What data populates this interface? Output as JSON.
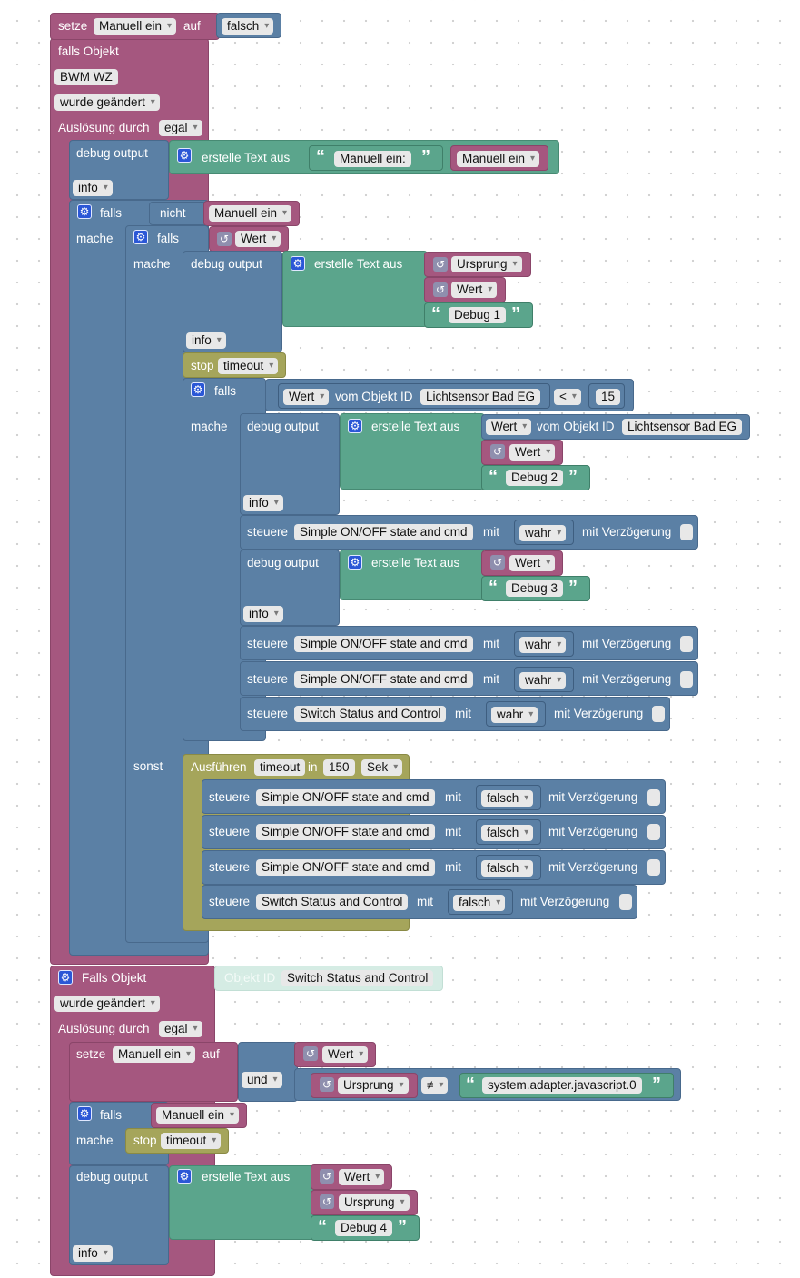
{
  "labels": {
    "setze": "setze",
    "auf": "auf",
    "falls_objekt": "falls Objekt",
    "falls_objekt_cap": "Falls Objekt",
    "wurde_geaendert": "wurde geändert",
    "ausloesung_durch": "Auslösung durch",
    "egal": "egal",
    "debug_output": "debug output",
    "erstelle_text_aus": "erstelle Text aus",
    "info": "info",
    "falls": "falls",
    "nicht": "nicht",
    "mache": "mache",
    "sonst": "sonst",
    "stop": "stop",
    "timeout": "timeout",
    "vom_objekt_id": "vom Objekt ID",
    "steuere": "steuere",
    "mit": "mit",
    "mit_verzoegerung": "mit Verzögerung",
    "ausfuehren": "Ausführen",
    "in": "in",
    "sek": "Sek",
    "objekt_id": "Objekt ID",
    "und": "und",
    "lt": "<",
    "neq": "≠"
  },
  "values": {
    "manuell_ein": "Manuell ein",
    "falsch": "falsch",
    "wahr": "wahr",
    "bwm_wz": "BWM WZ",
    "wert": "Wert",
    "ursprung": "Ursprung",
    "lichtsensor": "Lichtsensor Bad EG",
    "simple_onoff": "Simple ON/OFF state and cmd",
    "switch_status": "Switch Status and Control",
    "num_15": "15",
    "num_150": "150",
    "system_adapter": "system.adapter.javascript.0"
  },
  "strings": {
    "manuell_ein_colon": "Manuell ein:",
    "debug1": "Debug 1",
    "debug2": "Debug 2",
    "debug3": "Debug 3",
    "debug4": "Debug 4"
  },
  "colors": {
    "variables": "#a5577f",
    "logic": "#5b80a5",
    "text": "#5ba58c",
    "timers": "#a5a55b"
  },
  "icons": {
    "mutator": "gear-icon",
    "getter": "return-arrow-icon",
    "quote": "quote-icon"
  }
}
